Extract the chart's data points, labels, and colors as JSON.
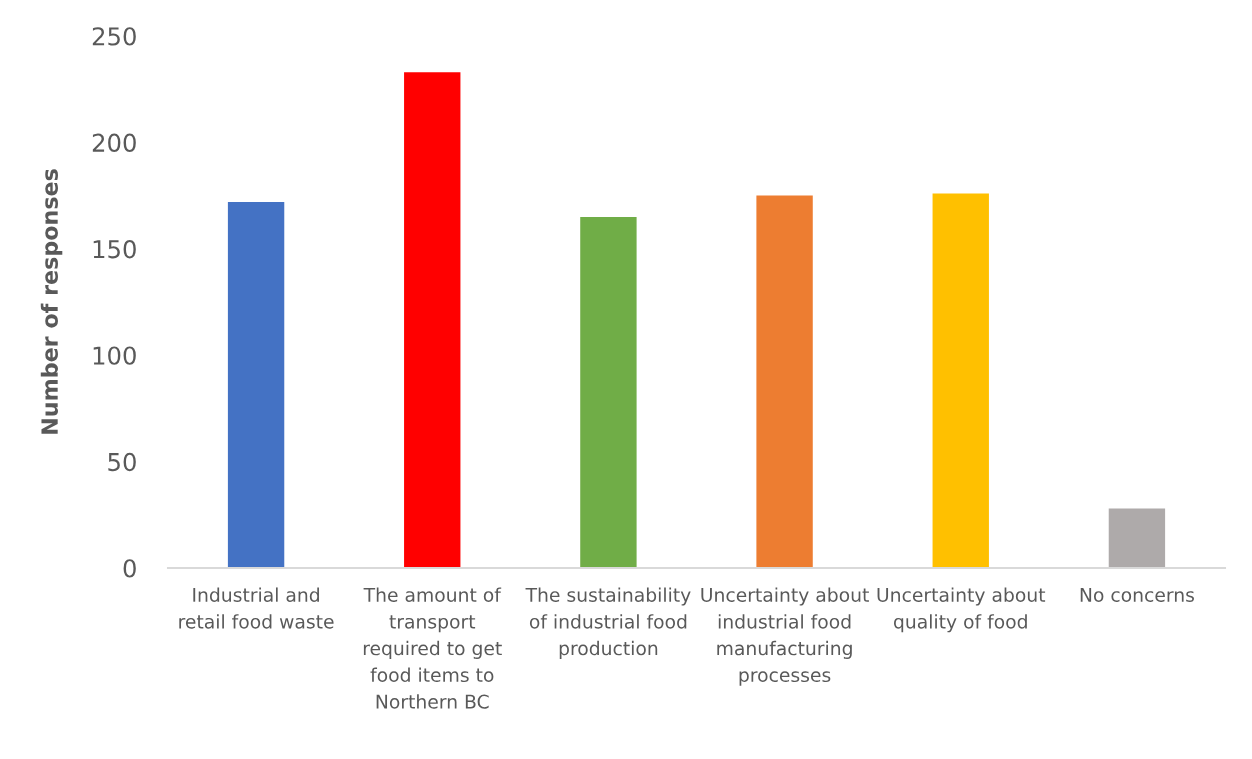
{
  "chart_data": {
    "type": "bar",
    "ylabel": "Number of responses",
    "categories": [
      "Industrial and retail food waste",
      "The amount of transport required to get food items to Northern BC",
      "The sustainability of industrial food production",
      "Uncertainty about industrial food manufacturing processes",
      "Uncertainty about quality of food",
      "No concerns"
    ],
    "values": [
      172,
      233,
      165,
      175,
      176,
      28
    ],
    "colors": [
      "#4472c4",
      "#ff0000",
      "#70ad47",
      "#ed7d31",
      "#ffc000",
      "#aeaaaa"
    ],
    "ylim": [
      0,
      250
    ],
    "yticks": [
      0,
      50,
      100,
      150,
      200,
      250
    ],
    "grid": false
  }
}
